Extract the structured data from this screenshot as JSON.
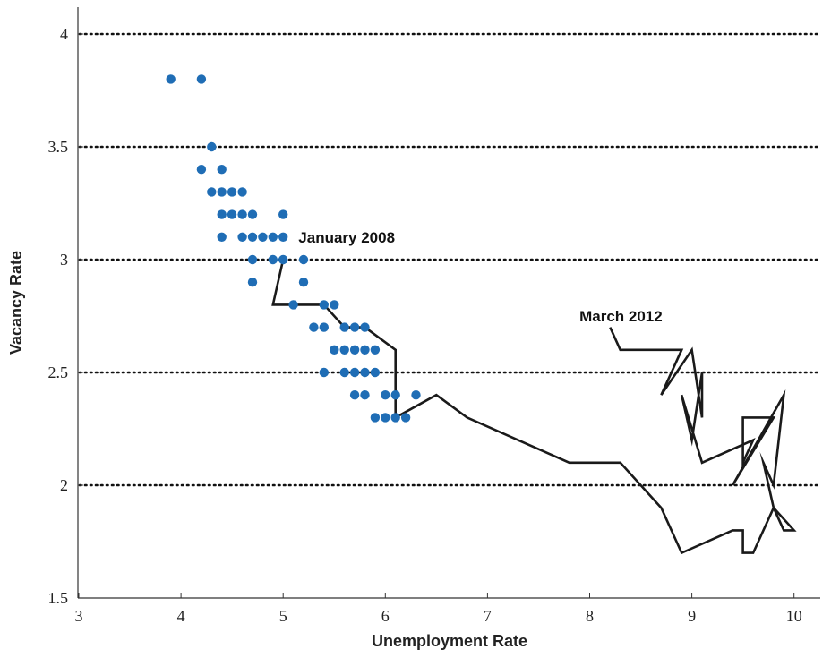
{
  "chart_data": {
    "type": "scatter",
    "xlabel": "Unemployment Rate",
    "ylabel": "Vacancy Rate",
    "xlim": [
      3,
      10.3
    ],
    "ylim": [
      1.5,
      4.1
    ],
    "x_ticks": [
      "3",
      "4",
      "5",
      "6",
      "7",
      "8",
      "9",
      "10"
    ],
    "y_ticks": [
      "1.5",
      "2",
      "2.5",
      "3",
      "3.5",
      "4"
    ],
    "grid": "horizontal dotted",
    "colors": {
      "points": "#1f6db5",
      "line": "#1a1a1a",
      "grid": "#111111",
      "axis": "#333333"
    },
    "annotations": [
      {
        "text": "January 2008",
        "x": 5.15,
        "y": 3.1
      },
      {
        "text": "March 2012",
        "x": 7.9,
        "y": 2.75
      }
    ],
    "series": [
      {
        "type": "scatter",
        "points": [
          [
            3.9,
            3.8
          ],
          [
            4.2,
            3.8
          ],
          [
            4.3,
            3.5
          ],
          [
            4.2,
            3.4
          ],
          [
            4.4,
            3.4
          ],
          [
            4.3,
            3.3
          ],
          [
            4.4,
            3.3
          ],
          [
            4.5,
            3.3
          ],
          [
            4.6,
            3.3
          ],
          [
            4.4,
            3.2
          ],
          [
            4.5,
            3.2
          ],
          [
            4.6,
            3.2
          ],
          [
            4.7,
            3.2
          ],
          [
            5.0,
            3.2
          ],
          [
            4.4,
            3.1
          ],
          [
            4.6,
            3.1
          ],
          [
            4.7,
            3.1
          ],
          [
            4.8,
            3.1
          ],
          [
            4.9,
            3.1
          ],
          [
            5.0,
            3.1
          ],
          [
            4.7,
            3.0
          ],
          [
            4.9,
            3.0
          ],
          [
            5.0,
            3.0
          ],
          [
            5.2,
            3.0
          ],
          [
            4.7,
            2.9
          ],
          [
            5.2,
            2.9
          ],
          [
            5.1,
            2.8
          ],
          [
            5.4,
            2.8
          ],
          [
            5.5,
            2.8
          ],
          [
            5.3,
            2.7
          ],
          [
            5.4,
            2.7
          ],
          [
            5.6,
            2.7
          ],
          [
            5.7,
            2.7
          ],
          [
            5.8,
            2.7
          ],
          [
            5.5,
            2.6
          ],
          [
            5.6,
            2.6
          ],
          [
            5.7,
            2.6
          ],
          [
            5.8,
            2.6
          ],
          [
            5.9,
            2.6
          ],
          [
            5.4,
            2.5
          ],
          [
            5.6,
            2.5
          ],
          [
            5.7,
            2.5
          ],
          [
            5.8,
            2.5
          ],
          [
            5.9,
            2.5
          ],
          [
            5.7,
            2.4
          ],
          [
            5.8,
            2.4
          ],
          [
            6.0,
            2.4
          ],
          [
            6.1,
            2.4
          ],
          [
            6.3,
            2.4
          ],
          [
            5.9,
            2.3
          ],
          [
            6.0,
            2.3
          ],
          [
            6.1,
            2.3
          ],
          [
            6.2,
            2.3
          ]
        ]
      },
      {
        "type": "line",
        "points": [
          [
            5.0,
            3.0
          ],
          [
            4.9,
            2.8
          ],
          [
            5.4,
            2.8
          ],
          [
            5.6,
            2.7
          ],
          [
            5.8,
            2.7
          ],
          [
            6.1,
            2.6
          ],
          [
            6.1,
            2.3
          ],
          [
            6.5,
            2.4
          ],
          [
            6.8,
            2.3
          ],
          [
            7.8,
            2.1
          ],
          [
            8.3,
            2.1
          ],
          [
            8.7,
            1.9
          ],
          [
            8.9,
            1.7
          ],
          [
            9.4,
            1.8
          ],
          [
            9.5,
            1.8
          ],
          [
            9.5,
            1.7
          ],
          [
            9.6,
            1.7
          ],
          [
            9.8,
            1.9
          ],
          [
            10.0,
            1.8
          ],
          [
            9.9,
            1.8
          ],
          [
            9.8,
            1.9
          ],
          [
            9.7,
            2.1
          ],
          [
            9.8,
            2.0
          ],
          [
            9.9,
            2.4
          ],
          [
            9.4,
            2.0
          ],
          [
            9.8,
            2.3
          ],
          [
            9.5,
            2.3
          ],
          [
            9.5,
            2.1
          ],
          [
            9.6,
            2.2
          ],
          [
            9.1,
            2.1
          ],
          [
            8.9,
            2.4
          ],
          [
            9.0,
            2.2
          ],
          [
            9.1,
            2.5
          ],
          [
            9.1,
            2.3
          ],
          [
            9.0,
            2.6
          ],
          [
            8.7,
            2.4
          ],
          [
            8.9,
            2.6
          ],
          [
            8.6,
            2.6
          ],
          [
            8.3,
            2.6
          ],
          [
            8.2,
            2.7
          ]
        ]
      }
    ]
  }
}
